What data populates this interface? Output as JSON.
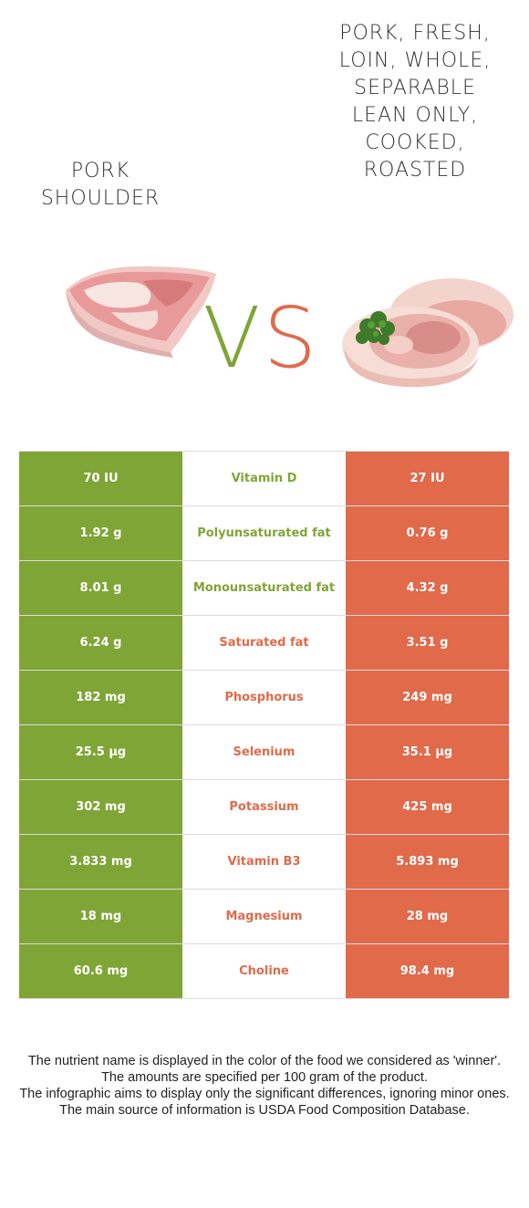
{
  "left_food": {
    "name": "Pork shoulder",
    "color": "#7fa537"
  },
  "right_food": {
    "name": "Pork, fresh, loin, whole, separable lean only, cooked, roasted",
    "color": "#e06a4a"
  },
  "vs": {
    "v": "V",
    "s": "S"
  },
  "rows": [
    {
      "left": "70 IU",
      "nutrient": "Vitamin D",
      "right": "27 IU",
      "winner": "left"
    },
    {
      "left": "1.92 g",
      "nutrient": "Polyunsaturated fat",
      "right": "0.76 g",
      "winner": "left"
    },
    {
      "left": "8.01 g",
      "nutrient": "Monounsaturated fat",
      "right": "4.32 g",
      "winner": "left"
    },
    {
      "left": "6.24 g",
      "nutrient": "Saturated fat",
      "right": "3.51 g",
      "winner": "right"
    },
    {
      "left": "182 mg",
      "nutrient": "Phosphorus",
      "right": "249 mg",
      "winner": "right"
    },
    {
      "left": "25.5 µg",
      "nutrient": "Selenium",
      "right": "35.1 µg",
      "winner": "right"
    },
    {
      "left": "302 mg",
      "nutrient": "Potassium",
      "right": "425 mg",
      "winner": "right"
    },
    {
      "left": "3.833 mg",
      "nutrient": "Vitamin B3",
      "right": "5.893 mg",
      "winner": "right"
    },
    {
      "left": "18 mg",
      "nutrient": "Magnesium",
      "right": "28 mg",
      "winner": "right"
    },
    {
      "left": "60.6 mg",
      "nutrient": "Choline",
      "right": "98.4 mg",
      "winner": "right"
    }
  ],
  "footer": [
    "The nutrient name is displayed in the color of the food we considered as 'winner'.",
    "The amounts are specified per 100 gram of the product.",
    "The infographic aims to display only the significant differences, ignoring minor ones.",
    "The main source of information is USDA Food Composition Database."
  ]
}
